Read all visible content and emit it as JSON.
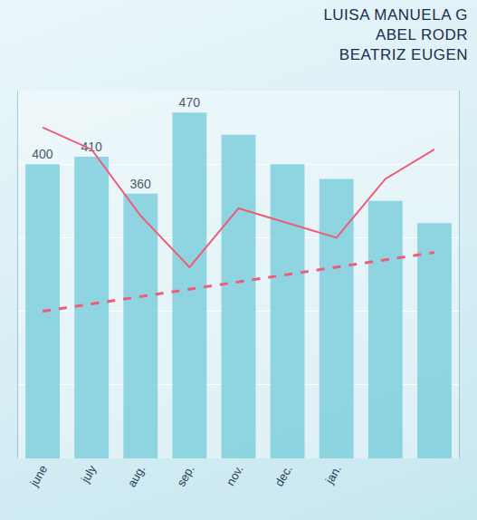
{
  "header": {
    "authors": [
      "LUISA MANUELA G",
      "ABEL RODR",
      "BEATRIZ EUGEN"
    ]
  },
  "chart_data": {
    "type": "bar",
    "categories": [
      "june",
      "july",
      "aug.",
      "sep.",
      "nov.",
      "dec.",
      "jan.",
      null,
      null
    ],
    "series": [
      {
        "type": "bar",
        "color": "#7fcfdd",
        "values": [
          400,
          410,
          360,
          470,
          440,
          400,
          380,
          350,
          320
        ],
        "value_labels": [
          "400",
          "410",
          "360",
          "470",
          null,
          null,
          null,
          null,
          null
        ]
      },
      {
        "type": "line",
        "color": "#ee5c78",
        "line_style": "solid",
        "values": [
          450,
          420,
          330,
          260,
          340,
          320,
          300,
          380,
          420
        ]
      },
      {
        "type": "line",
        "color": "#ee5c78",
        "line_style": "dashed",
        "values": [
          200,
          210,
          220,
          230,
          240,
          250,
          260,
          270,
          280
        ]
      }
    ],
    "ylim": [
      0,
      500
    ],
    "yticks": [
      0,
      100,
      200,
      300,
      400,
      500
    ],
    "grid": true,
    "tick_labels": "x"
  }
}
